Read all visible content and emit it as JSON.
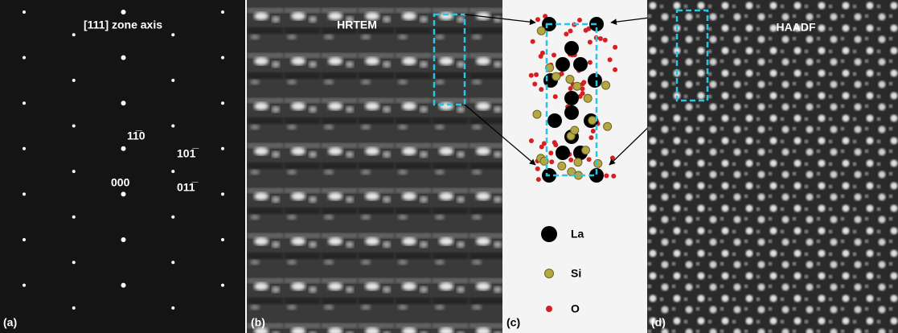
{
  "panels": [
    {
      "label": "(a)",
      "title": "[111] zone axis",
      "spots": [
        "11̅0",
        "101̅",
        "000",
        "011̅"
      ]
    },
    {
      "label": "(b)",
      "title": "HRTEM"
    },
    {
      "label": "(c)",
      "legend": [
        "La",
        "Si",
        "O"
      ]
    },
    {
      "label": "(d)",
      "title": "HAADF"
    }
  ]
}
